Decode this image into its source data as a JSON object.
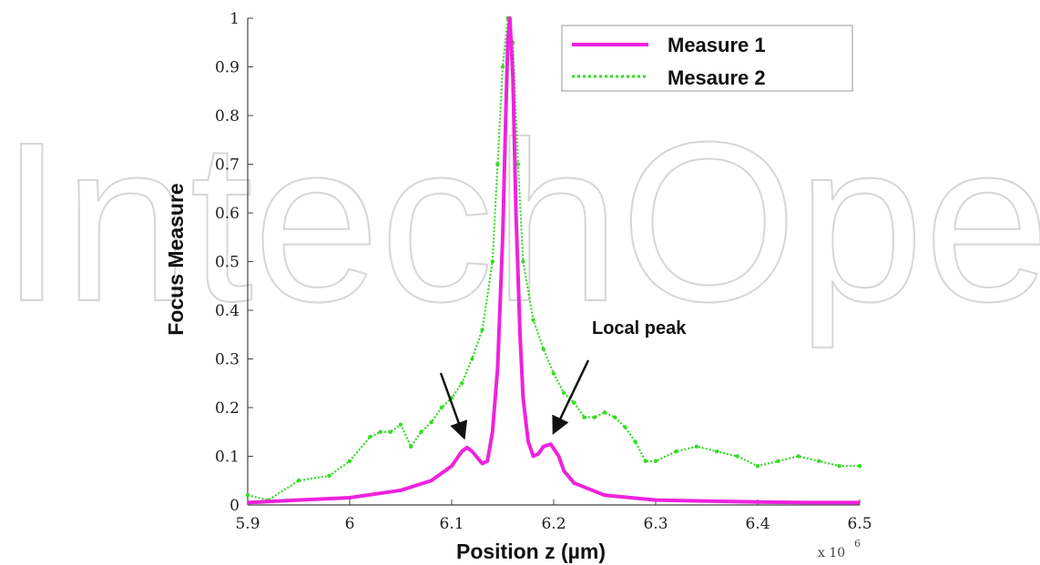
{
  "watermark": "IntechOpen",
  "chart_data": {
    "type": "line",
    "xlabel": "Position z (µm)",
    "ylabel": "Focus Measure",
    "x_multiplier_base": "x 10",
    "x_multiplier_exp": "6",
    "xlim": [
      5.9,
      6.5
    ],
    "ylim": [
      0,
      1
    ],
    "xticks": [
      "5.9",
      "6",
      "6.1",
      "6.2",
      "6.3",
      "6.4",
      "6.5"
    ],
    "yticks": [
      "0",
      "0.1",
      "0.2",
      "0.3",
      "0.4",
      "0.5",
      "0.6",
      "0.7",
      "0.8",
      "0.9",
      "1"
    ],
    "xtick_values": [
      5.9,
      6.0,
      6.1,
      6.2,
      6.3,
      6.4,
      6.5
    ],
    "ytick_values": [
      0,
      0.1,
      0.2,
      0.3,
      0.4,
      0.5,
      0.6,
      0.7,
      0.8,
      0.9,
      1.0
    ],
    "legend_position": "top-right",
    "grid": false,
    "annotation": {
      "text": "Local peak",
      "targets": [
        [
          6.115,
          0.115
        ],
        [
          6.197,
          0.125
        ]
      ]
    },
    "series": [
      {
        "name": "Measure 1",
        "color": "#ee22dd",
        "x": [
          5.9,
          5.95,
          6.0,
          6.05,
          6.08,
          6.1,
          6.11,
          6.115,
          6.12,
          6.13,
          6.135,
          6.14,
          6.145,
          6.15,
          6.153,
          6.155,
          6.157,
          6.16,
          6.163,
          6.167,
          6.17,
          6.175,
          6.18,
          6.185,
          6.19,
          6.197,
          6.205,
          6.21,
          6.22,
          6.25,
          6.3,
          6.35,
          6.4,
          6.45,
          6.5
        ],
        "y": [
          0.005,
          0.01,
          0.015,
          0.03,
          0.05,
          0.08,
          0.11,
          0.118,
          0.11,
          0.085,
          0.09,
          0.15,
          0.28,
          0.55,
          0.8,
          0.95,
          1.0,
          0.88,
          0.6,
          0.35,
          0.22,
          0.13,
          0.1,
          0.105,
          0.12,
          0.125,
          0.1,
          0.07,
          0.045,
          0.02,
          0.01,
          0.008,
          0.006,
          0.005,
          0.005
        ]
      },
      {
        "name": "Mesaure 2",
        "color": "#33dd22",
        "x": [
          5.9,
          5.92,
          5.95,
          5.98,
          6.0,
          6.02,
          6.03,
          6.04,
          6.05,
          6.06,
          6.07,
          6.08,
          6.09,
          6.1,
          6.11,
          6.12,
          6.13,
          6.14,
          6.145,
          6.15,
          6.155,
          6.16,
          6.165,
          6.17,
          6.18,
          6.19,
          6.2,
          6.21,
          6.22,
          6.23,
          6.24,
          6.25,
          6.26,
          6.27,
          6.28,
          6.29,
          6.3,
          6.32,
          6.34,
          6.36,
          6.38,
          6.4,
          6.42,
          6.44,
          6.46,
          6.48,
          6.5
        ],
        "y": [
          0.02,
          0.01,
          0.05,
          0.06,
          0.09,
          0.14,
          0.15,
          0.15,
          0.165,
          0.12,
          0.15,
          0.17,
          0.2,
          0.22,
          0.25,
          0.3,
          0.36,
          0.5,
          0.7,
          0.9,
          1.0,
          0.95,
          0.7,
          0.5,
          0.38,
          0.32,
          0.27,
          0.23,
          0.21,
          0.18,
          0.18,
          0.19,
          0.18,
          0.16,
          0.13,
          0.09,
          0.09,
          0.11,
          0.12,
          0.11,
          0.1,
          0.08,
          0.09,
          0.1,
          0.09,
          0.08,
          0.08
        ]
      }
    ]
  }
}
